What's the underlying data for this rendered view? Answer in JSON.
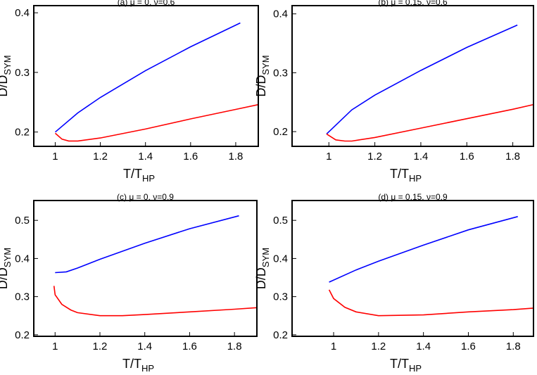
{
  "chart_data": [
    {
      "type": "line",
      "title": "(a) μ = 0, ν=0.6",
      "xlabel": "T/T",
      "xlabel_sub": "HP",
      "ylabel": "D/D",
      "ylabel_sub": "SYM",
      "xlim": [
        0.905,
        1.9
      ],
      "ylim": [
        0.176,
        0.412
      ],
      "xticks": [
        1,
        1.2,
        1.4,
        1.6,
        1.8
      ],
      "yticks": [
        0.2,
        0.3,
        0.4
      ],
      "series": [
        {
          "color": "#0000ff",
          "x": [
            1.0,
            1.1,
            1.2,
            1.4,
            1.6,
            1.82
          ],
          "values": [
            0.2,
            0.232,
            0.258,
            0.303,
            0.343,
            0.383
          ]
        },
        {
          "color": "#ff0000",
          "x": [
            1.0,
            1.03,
            1.06,
            1.1,
            1.2,
            1.4,
            1.6,
            1.8,
            1.9
          ],
          "values": [
            0.198,
            0.188,
            0.185,
            0.185,
            0.19,
            0.205,
            0.222,
            0.238,
            0.246
          ]
        }
      ]
    },
    {
      "type": "line",
      "title": "(b) μ = 0.15, ν=0.6",
      "xlabel": "T/T",
      "xlabel_sub": "HP",
      "ylabel": "D/D",
      "ylabel_sub": "SYM",
      "xlim": [
        0.84,
        1.89
      ],
      "ylim": [
        0.175,
        0.414
      ],
      "xticks": [
        1,
        1.2,
        1.4,
        1.6,
        1.8
      ],
      "yticks": [
        0.2,
        0.3,
        0.4
      ],
      "series": [
        {
          "color": "#0000ff",
          "x": [
            0.99,
            1.1,
            1.2,
            1.4,
            1.6,
            1.82
          ],
          "values": [
            0.196,
            0.237,
            0.262,
            0.304,
            0.343,
            0.381
          ]
        },
        {
          "color": "#ff0000",
          "x": [
            0.99,
            1.03,
            1.07,
            1.1,
            1.2,
            1.4,
            1.6,
            1.8,
            1.89
          ],
          "values": [
            0.196,
            0.186,
            0.184,
            0.184,
            0.19,
            0.206,
            0.222,
            0.238,
            0.246
          ]
        }
      ]
    },
    {
      "type": "line",
      "title": "(c) μ = 0, ν=0.9",
      "xlabel": "T/T",
      "xlabel_sub": "HP",
      "ylabel": "D/D",
      "ylabel_sub": "SYM",
      "xlim": [
        0.905,
        1.9
      ],
      "ylim": [
        0.196,
        0.552
      ],
      "xticks": [
        1,
        1.2,
        1.4,
        1.6,
        1.8
      ],
      "yticks": [
        0.2,
        0.3,
        0.4,
        0.5
      ],
      "series": [
        {
          "color": "#0000ff",
          "x": [
            1.0,
            1.05,
            1.1,
            1.2,
            1.4,
            1.6,
            1.82
          ],
          "values": [
            0.363,
            0.365,
            0.375,
            0.398,
            0.44,
            0.478,
            0.512
          ]
        },
        {
          "color": "#ff0000",
          "x": [
            0.995,
            1.0,
            1.03,
            1.07,
            1.1,
            1.2,
            1.3,
            1.4,
            1.6,
            1.8,
            1.9
          ],
          "values": [
            0.328,
            0.305,
            0.28,
            0.265,
            0.258,
            0.25,
            0.25,
            0.253,
            0.26,
            0.267,
            0.271
          ]
        }
      ]
    },
    {
      "type": "line",
      "title": "(d) μ = 0.15, ν=0.9",
      "xlabel": "T/T",
      "xlabel_sub": "HP",
      "ylabel": "D/D",
      "ylabel_sub": "SYM",
      "xlim": [
        0.815,
        1.89
      ],
      "ylim": [
        0.196,
        0.552
      ],
      "xticks": [
        1,
        1.2,
        1.4,
        1.6,
        1.8
      ],
      "yticks": [
        0.2,
        0.3,
        0.4,
        0.5
      ],
      "series": [
        {
          "color": "#0000ff",
          "x": [
            0.98,
            1.1,
            1.2,
            1.4,
            1.6,
            1.82
          ],
          "values": [
            0.338,
            0.37,
            0.393,
            0.435,
            0.475,
            0.51
          ]
        },
        {
          "color": "#ff0000",
          "x": [
            0.98,
            1.0,
            1.05,
            1.1,
            1.2,
            1.4,
            1.6,
            1.8,
            1.89
          ],
          "values": [
            0.318,
            0.295,
            0.272,
            0.26,
            0.25,
            0.252,
            0.26,
            0.266,
            0.27
          ]
        }
      ]
    }
  ]
}
